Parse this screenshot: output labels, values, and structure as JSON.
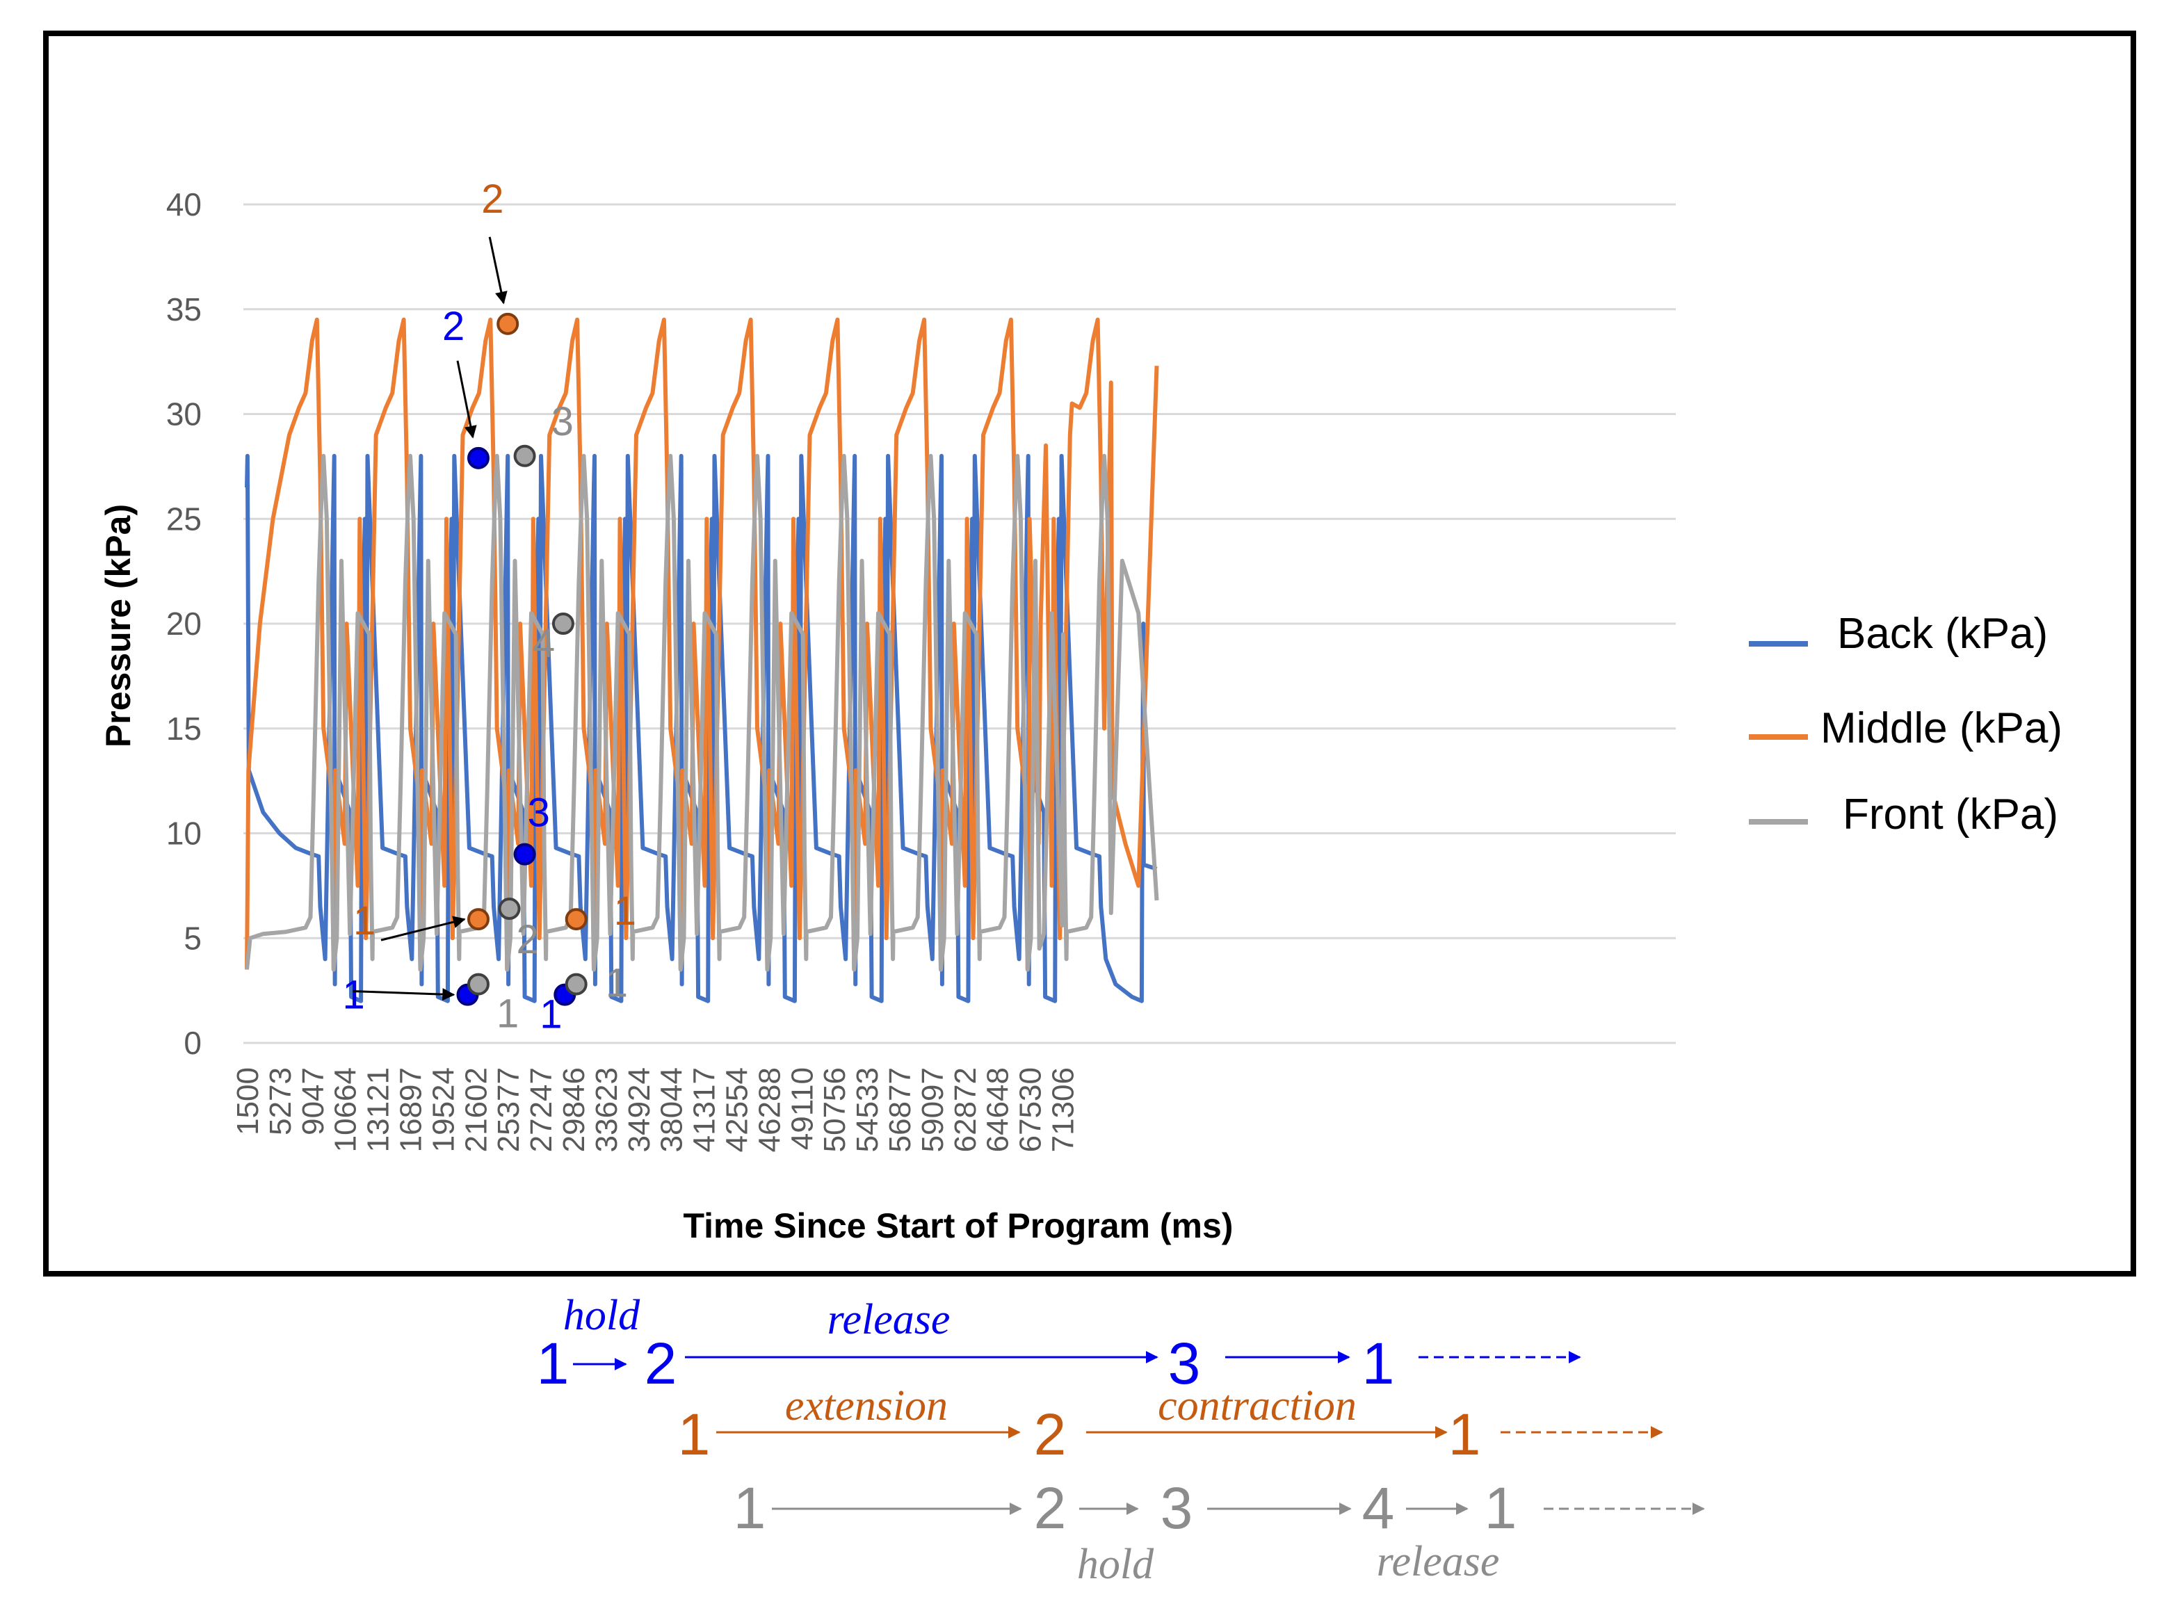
{
  "chart_data": {
    "type": "line",
    "xlabel": "Time Since Start of Program (ms)",
    "ylabel": "Pressure (kPa)",
    "ylim": [
      0,
      40
    ],
    "yticks": [
      "0",
      "5",
      "10",
      "15",
      "20",
      "25",
      "30",
      "35",
      "40"
    ],
    "xticks": [
      "1500",
      "5273",
      "9047",
      "10664",
      "13121",
      "16897",
      "19524",
      "21602",
      "25377",
      "27247",
      "29846",
      "33623",
      "34924",
      "38044",
      "41317",
      "42554",
      "46288",
      "49110",
      "50756",
      "54533",
      "56877",
      "59097",
      "62872",
      "64648",
      "67530",
      "71306"
    ],
    "grid": true,
    "legend_position": "right",
    "period_ticks": 2.66,
    "first_cycle_tick": 0.0,
    "x_end_tick": 27.5,
    "series": [
      {
        "name": "Back (kPa)",
        "color": "#4472c4",
        "cycle": [
          [
            0.0,
            26.5
          ],
          [
            0.02,
            28.0
          ],
          [
            0.06,
            13.0
          ],
          [
            0.5,
            11.0
          ],
          [
            1.0,
            10.0
          ],
          [
            1.5,
            9.3
          ],
          [
            2.0,
            9.0
          ],
          [
            2.2,
            8.9
          ],
          [
            2.25,
            6.5
          ],
          [
            2.4,
            4.0
          ],
          [
            2.7,
            2.8
          ],
          [
            3.2,
            2.2
          ],
          [
            3.5,
            2.0
          ],
          [
            3.52,
            12.0
          ],
          [
            3.55,
            20.0
          ],
          [
            3.62,
            25.0
          ],
          [
            3.7,
            28.0
          ]
        ],
        "tail": [
          [
            27.5,
            8.5
          ],
          [
            27.9,
            8.3
          ]
        ]
      },
      {
        "name": "Middle (kPa)",
        "color": "#ed7d31",
        "cycle": [
          [
            0.0,
            3.5
          ],
          [
            0.05,
            13.0
          ],
          [
            0.4,
            20.0
          ],
          [
            0.8,
            25.0
          ],
          [
            1.3,
            29.0
          ],
          [
            1.6,
            30.3
          ],
          [
            1.8,
            31.0
          ],
          [
            2.0,
            33.5
          ],
          [
            2.15,
            34.5
          ],
          [
            2.25,
            27.0
          ],
          [
            2.35,
            15.0
          ],
          [
            2.6,
            12.0
          ],
          [
            3.0,
            9.5
          ],
          [
            3.4,
            7.5
          ],
          [
            3.65,
            5.0
          ]
        ],
        "tail": [
          [
            24.0,
            25.0
          ],
          [
            24.5,
            28.5
          ],
          [
            25.3,
            30.5
          ],
          [
            26.5,
            31.5
          ],
          [
            27.9,
            32.3
          ]
        ]
      },
      {
        "name": "Front (kPa)",
        "color": "#a5a5a5",
        "cycle": [
          [
            0.0,
            3.5
          ],
          [
            0.1,
            5.0
          ],
          [
            0.5,
            5.2
          ],
          [
            1.2,
            5.3
          ],
          [
            1.8,
            5.5
          ],
          [
            1.95,
            6.0
          ],
          [
            2.05,
            12.0
          ],
          [
            2.2,
            22.0
          ],
          [
            2.3,
            26.5
          ],
          [
            2.35,
            28.0
          ],
          [
            2.45,
            25.0
          ],
          [
            2.9,
            23.0
          ],
          [
            3.4,
            20.5
          ],
          [
            3.75,
            19.5
          ],
          [
            3.8,
            9.0
          ],
          [
            3.85,
            4.0
          ]
        ],
        "tail": [
          [
            24.3,
            4.5
          ],
          [
            25.0,
            5.6
          ],
          [
            26.5,
            6.2
          ],
          [
            27.9,
            6.8
          ]
        ]
      }
    ],
    "annotations": {
      "back": [
        {
          "label": "1",
          "x": 6.77,
          "y": 2.3
        },
        {
          "label": "2",
          "x": 7.1,
          "y": 27.9
        },
        {
          "label": "3",
          "x": 8.52,
          "y": 9.0
        },
        {
          "label": "1",
          "x": 9.75,
          "y": 2.3
        }
      ],
      "middle": [
        {
          "label": "1",
          "x": 7.1,
          "y": 5.9
        },
        {
          "label": "2",
          "x": 8.0,
          "y": 34.3
        },
        {
          "label": "1",
          "x": 10.1,
          "y": 5.9
        }
      ],
      "front": [
        {
          "label": "1",
          "x": 7.1,
          "y": 2.8
        },
        {
          "label": "2",
          "x": 8.05,
          "y": 6.4
        },
        {
          "label": "3",
          "x": 8.52,
          "y": 28.0
        },
        {
          "label": "4",
          "x": 9.7,
          "y": 20.0
        },
        {
          "label": "1",
          "x": 10.1,
          "y": 2.8
        }
      ]
    }
  },
  "legend": {
    "back": "Back (kPa)",
    "middle": "Middle (kPa)",
    "front": "Front (kPa)"
  },
  "sequence": {
    "back": {
      "color": "#0000ee",
      "states": [
        "1",
        "2",
        "3",
        "1"
      ],
      "labels": {
        "hold": "hold",
        "release": "release"
      }
    },
    "middle": {
      "color": "#c55a11",
      "states": [
        "1",
        "2",
        "1"
      ],
      "labels": {
        "extension": "extension",
        "contraction": "contraction"
      }
    },
    "front": {
      "color": "#8c8c8c",
      "states": [
        "1",
        "2",
        "3",
        "4",
        "1"
      ],
      "labels": {
        "hold": "hold",
        "release": "release"
      }
    }
  }
}
